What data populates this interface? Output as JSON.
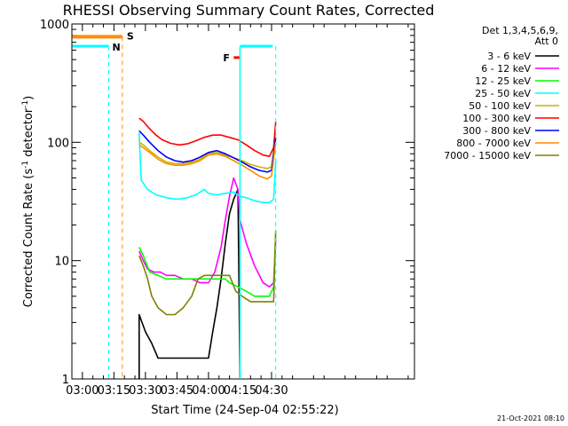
{
  "chart_data": {
    "type": "line",
    "title": "RHESSI Observing Summary Count Rates, Corrected",
    "xlabel": "Start Time (24-Sep-04 02:55:22)",
    "ylabel_main": "Corrected Count Rate (s",
    "ylabel_sup1": "-1",
    "ylabel_mid": " detector",
    "ylabel_sup2": "-1",
    "ylabel_end": ")",
    "x_unit": "minutes",
    "xlim": [
      175,
      338
    ],
    "ylim": [
      1,
      1000
    ],
    "yscale": "log",
    "xticks": [
      {
        "x": 180,
        "label": "03:00"
      },
      {
        "x": 195,
        "label": "03:15"
      },
      {
        "x": 210,
        "label": "03:30"
      },
      {
        "x": 225,
        "label": "03:45"
      },
      {
        "x": 240,
        "label": "04:00"
      },
      {
        "x": 255,
        "label": "04:15"
      },
      {
        "x": 270,
        "label": "04:30"
      }
    ],
    "yticks": [
      {
        "y": 1,
        "label": "1"
      },
      {
        "y": 10,
        "label": "10"
      },
      {
        "y": 100,
        "label": "100"
      },
      {
        "y": 1000,
        "label": "1000"
      }
    ],
    "legend_title": [
      "Det 1,3,4,5,6,9,",
      "Att 0"
    ],
    "series": [
      {
        "name": "3 - 6 keV",
        "color": "#000000",
        "points": [
          [
            207,
            1
          ],
          [
            207,
            3.5
          ],
          [
            210,
            2.5
          ],
          [
            213,
            2
          ],
          [
            216,
            1.5
          ],
          [
            220,
            1.5
          ],
          [
            225,
            1.5
          ],
          [
            230,
            1.5
          ],
          [
            235,
            1.5
          ],
          [
            238,
            1.5
          ],
          [
            240,
            1.5
          ],
          [
            242,
            2.5
          ],
          [
            244,
            4
          ],
          [
            246,
            7
          ],
          [
            248,
            14
          ],
          [
            250,
            25
          ],
          [
            252,
            33
          ],
          [
            254,
            40
          ],
          [
            255,
            1
          ]
        ]
      },
      {
        "name": "6 - 12 keV",
        "color": "#ff00ff",
        "points": [
          [
            207,
            12
          ],
          [
            209,
            10
          ],
          [
            211,
            8.5
          ],
          [
            214,
            8
          ],
          [
            217,
            8
          ],
          [
            220,
            7.5
          ],
          [
            224,
            7.5
          ],
          [
            228,
            7
          ],
          [
            232,
            7
          ],
          [
            236,
            6.5
          ],
          [
            240,
            6.5
          ],
          [
            243,
            8
          ],
          [
            246,
            13
          ],
          [
            248,
            22
          ],
          [
            250,
            35
          ],
          [
            252,
            50
          ],
          [
            254,
            40
          ],
          [
            255,
            22
          ],
          [
            258,
            14
          ],
          [
            262,
            9
          ],
          [
            266,
            6.5
          ],
          [
            269,
            6
          ],
          [
            271,
            6.5
          ],
          [
            272,
            15
          ]
        ]
      },
      {
        "name": "12 - 25 keV",
        "color": "#00ff00",
        "points": [
          [
            207,
            13
          ],
          [
            209,
            11
          ],
          [
            212,
            8
          ],
          [
            216,
            7.5
          ],
          [
            220,
            7
          ],
          [
            225,
            7
          ],
          [
            230,
            7
          ],
          [
            235,
            7
          ],
          [
            240,
            7
          ],
          [
            244,
            7
          ],
          [
            248,
            7
          ],
          [
            250,
            6.5
          ],
          [
            254,
            6
          ],
          [
            258,
            5.5
          ],
          [
            262,
            5
          ],
          [
            266,
            5
          ],
          [
            269,
            5
          ],
          [
            271,
            6
          ],
          [
            272,
            18
          ]
        ]
      },
      {
        "name": "25 - 50 keV",
        "color": "#00ffff",
        "points": [
          [
            207,
            120
          ],
          [
            208,
            48
          ],
          [
            211,
            40
          ],
          [
            215,
            36
          ],
          [
            220,
            34
          ],
          [
            225,
            33
          ],
          [
            230,
            34
          ],
          [
            234,
            36
          ],
          [
            238,
            40
          ],
          [
            240,
            37
          ],
          [
            244,
            36
          ],
          [
            248,
            37
          ],
          [
            252,
            38
          ],
          [
            255,
            35
          ],
          [
            258,
            34
          ],
          [
            262,
            32
          ],
          [
            266,
            31
          ],
          [
            269,
            31
          ],
          [
            271,
            33
          ],
          [
            272,
            70
          ]
        ]
      },
      {
        "name": "50 - 100 keV",
        "color": "#c8b400",
        "points": [
          [
            207,
            100
          ],
          [
            209,
            95
          ],
          [
            212,
            85
          ],
          [
            216,
            75
          ],
          [
            220,
            68
          ],
          [
            224,
            66
          ],
          [
            228,
            66
          ],
          [
            232,
            68
          ],
          [
            236,
            72
          ],
          [
            240,
            80
          ],
          [
            244,
            82
          ],
          [
            248,
            78
          ],
          [
            252,
            74
          ],
          [
            256,
            70
          ],
          [
            260,
            65
          ],
          [
            264,
            62
          ],
          [
            268,
            60
          ],
          [
            270,
            62
          ],
          [
            272,
            120
          ]
        ]
      },
      {
        "name": "100 - 300 keV",
        "color": "#ff0000",
        "points": [
          [
            207,
            160
          ],
          [
            209,
            150
          ],
          [
            212,
            130
          ],
          [
            215,
            115
          ],
          [
            218,
            105
          ],
          [
            222,
            98
          ],
          [
            226,
            95
          ],
          [
            230,
            97
          ],
          [
            234,
            103
          ],
          [
            238,
            110
          ],
          [
            242,
            115
          ],
          [
            246,
            115
          ],
          [
            250,
            110
          ],
          [
            254,
            105
          ],
          [
            258,
            95
          ],
          [
            262,
            85
          ],
          [
            266,
            78
          ],
          [
            269,
            76
          ],
          [
            271,
            90
          ],
          [
            272,
            150
          ]
        ]
      },
      {
        "name": "300 - 800 keV",
        "color": "#0000ff",
        "points": [
          [
            207,
            125
          ],
          [
            209,
            115
          ],
          [
            212,
            100
          ],
          [
            216,
            85
          ],
          [
            220,
            75
          ],
          [
            224,
            70
          ],
          [
            228,
            68
          ],
          [
            232,
            70
          ],
          [
            236,
            75
          ],
          [
            240,
            82
          ],
          [
            244,
            85
          ],
          [
            248,
            80
          ],
          [
            252,
            74
          ],
          [
            256,
            68
          ],
          [
            260,
            62
          ],
          [
            264,
            58
          ],
          [
            268,
            56
          ],
          [
            270,
            58
          ],
          [
            272,
            110
          ]
        ]
      },
      {
        "name": "800 - 7000 keV",
        "color": "#ff8c00",
        "points": [
          [
            207,
            95
          ],
          [
            209,
            90
          ],
          [
            212,
            82
          ],
          [
            216,
            72
          ],
          [
            220,
            66
          ],
          [
            224,
            64
          ],
          [
            228,
            64
          ],
          [
            232,
            66
          ],
          [
            236,
            70
          ],
          [
            240,
            78
          ],
          [
            244,
            80
          ],
          [
            248,
            76
          ],
          [
            252,
            70
          ],
          [
            256,
            64
          ],
          [
            260,
            58
          ],
          [
            264,
            52
          ],
          [
            268,
            49
          ],
          [
            270,
            52
          ],
          [
            272,
            100
          ]
        ]
      },
      {
        "name": "7000 - 15000 keV",
        "color": "#808000",
        "points": [
          [
            207,
            11
          ],
          [
            209,
            9
          ],
          [
            211,
            7
          ],
          [
            213,
            5
          ],
          [
            216,
            4
          ],
          [
            220,
            3.5
          ],
          [
            224,
            3.5
          ],
          [
            228,
            4
          ],
          [
            232,
            5
          ],
          [
            235,
            7
          ],
          [
            238,
            7.5
          ],
          [
            242,
            7.5
          ],
          [
            246,
            7.5
          ],
          [
            250,
            7.5
          ],
          [
            253,
            5.5
          ],
          [
            256,
            5
          ],
          [
            260,
            4.5
          ],
          [
            264,
            4.5
          ],
          [
            268,
            4.5
          ],
          [
            271,
            4.5
          ],
          [
            272,
            18
          ]
        ]
      }
    ],
    "night_segments": [
      [
        175.3,
        192.5
      ],
      [
        255,
        270.5
      ]
    ],
    "night_level": 650,
    "saa_segment": [
      175.3,
      199
    ],
    "saa_level": 780,
    "flare_segment": [
      252,
      255
    ],
    "flare_level": 520,
    "n_line_x": 192.5,
    "s_line_x": 199,
    "right_line_x": 272,
    "annotations": {
      "n": "N",
      "s": "S",
      "f": "F"
    },
    "timestamp": "21-Oct-2021 08:10"
  }
}
